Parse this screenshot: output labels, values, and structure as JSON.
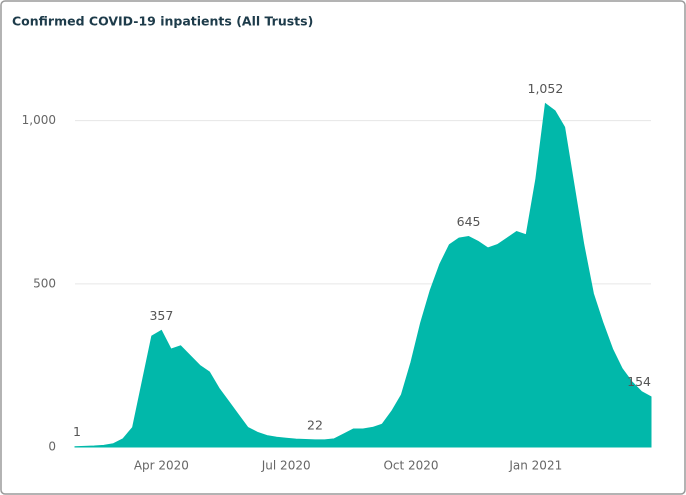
{
  "chart_data": {
    "type": "area",
    "title": "Confirmed COVID-19 inpatients (All Trusts)",
    "categories": [
      null,
      null,
      null,
      null,
      null,
      null,
      null,
      null,
      null,
      "Apr 2020",
      null,
      null,
      null,
      null,
      null,
      null,
      null,
      null,
      null,
      null,
      null,
      null,
      "Jul 2020",
      null,
      null,
      null,
      null,
      null,
      null,
      null,
      null,
      null,
      null,
      null,
      null,
      "Oct 2020",
      null,
      null,
      null,
      null,
      null,
      null,
      null,
      null,
      null,
      null,
      null,
      null,
      "Jan 2021",
      null,
      null,
      null,
      null,
      null,
      null,
      null,
      null,
      null,
      null,
      null,
      null
    ],
    "values": [
      1,
      2,
      3,
      5,
      10,
      25,
      60,
      200,
      340,
      357,
      300,
      310,
      280,
      250,
      230,
      180,
      140,
      100,
      60,
      45,
      35,
      30,
      27,
      24,
      23,
      22,
      22,
      25,
      40,
      55,
      55,
      60,
      70,
      110,
      160,
      260,
      380,
      480,
      560,
      620,
      640,
      645,
      630,
      610,
      620,
      640,
      660,
      650,
      820,
      1052,
      1030,
      980,
      800,
      620,
      470,
      380,
      300,
      240,
      200,
      170,
      154
    ],
    "value_labels": [
      "1",
      null,
      null,
      null,
      null,
      null,
      null,
      null,
      null,
      "357",
      null,
      null,
      null,
      null,
      null,
      null,
      null,
      null,
      null,
      null,
      null,
      null,
      null,
      null,
      null,
      "22",
      null,
      null,
      null,
      null,
      null,
      null,
      null,
      null,
      null,
      null,
      null,
      null,
      null,
      null,
      null,
      "645",
      null,
      null,
      null,
      null,
      null,
      null,
      null,
      "1,052",
      null,
      null,
      null,
      null,
      null,
      null,
      null,
      null,
      null,
      null,
      "154"
    ],
    "color": "#01b8aa",
    "ylim": [
      0,
      1100
    ],
    "yticks": [
      0,
      500,
      {
        "value": 1000,
        "label": "1,000"
      }
    ],
    "grid": true
  }
}
